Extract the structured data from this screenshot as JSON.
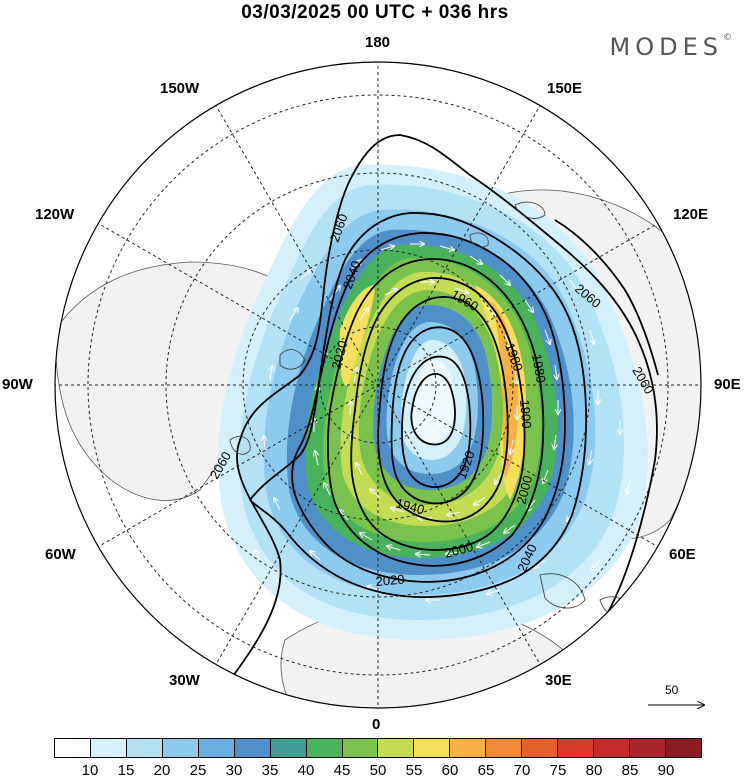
{
  "title": "03/03/2025  00 UTC  + 036 hrs",
  "brand": "MODES",
  "brand_mark": "©",
  "longitude_labels": {
    "top": "180",
    "bottom": "0",
    "left": "90W",
    "right": "90E",
    "upper_left_1": "150W",
    "upper_left_2": "120W",
    "upper_right_1": "150E",
    "upper_right_2": "120E",
    "lower_left_1": "60W",
    "lower_left_2": "30W",
    "lower_right_1": "60E",
    "lower_right_2": "30E"
  },
  "contour_labels": [
    "2060",
    "2040",
    "2020",
    "1960",
    "1980",
    "1900",
    "1920",
    "1940",
    "1980",
    "2000",
    "2000",
    "2020",
    "2040",
    "2060",
    "2060",
    "2060"
  ],
  "reference_vector": "50",
  "colorbar": {
    "tick_labels": [
      "10",
      "15",
      "20",
      "25",
      "30",
      "35",
      "40",
      "45",
      "50",
      "55",
      "60",
      "65",
      "70",
      "75",
      "80",
      "85",
      "90"
    ],
    "colors": [
      "#ffffff",
      "#d4f0fb",
      "#b3e2f7",
      "#8ccbee",
      "#6aaedf",
      "#4f90c8",
      "#3e9e92",
      "#48b35a",
      "#79c24c",
      "#c4dc54",
      "#f6df5a",
      "#f6b045",
      "#f08a38",
      "#e6602e",
      "#d93a2a",
      "#c42b2b",
      "#a8232a",
      "#8a1d22"
    ]
  },
  "colors": {
    "land": "#f2f2f2",
    "ocean": "#ffffff"
  }
}
